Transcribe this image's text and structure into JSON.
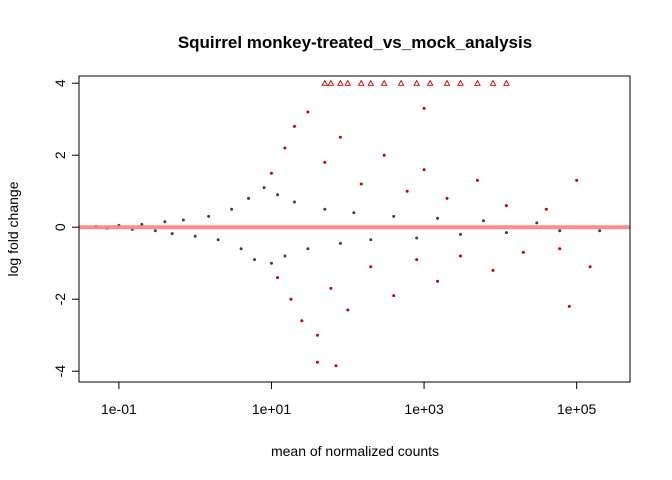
{
  "chart_data": {
    "type": "scatter",
    "title": "Squirrel monkey-treated_vs_mock_analysis",
    "xlabel": "mean of normalized counts",
    "ylabel": "log fold change",
    "x_scale": "log10",
    "xlim": [
      0.03,
      500000
    ],
    "ylim": [
      -4.3,
      4.2
    ],
    "x_ticks": [
      0.1,
      10,
      1000,
      100000
    ],
    "x_tick_labels": [
      "1e-01",
      "1e+01",
      "1e+03",
      "1e+05"
    ],
    "y_ticks": [
      -4,
      -2,
      0,
      2,
      4
    ],
    "y_tick_labels": [
      "-4",
      "-2",
      "0",
      "2",
      "4"
    ],
    "reference_line": {
      "y": 0,
      "color": "#ff8080"
    },
    "grid": false,
    "colors": {
      "not_significant": "#404040",
      "significant": "#cc0000"
    },
    "series": [
      {
        "label": "not_significant",
        "marker": "dot",
        "color": "#404040",
        "points": [
          [
            0.05,
            0.02
          ],
          [
            0.07,
            -0.03
          ],
          [
            0.1,
            0.05
          ],
          [
            0.15,
            -0.06
          ],
          [
            0.2,
            0.08
          ],
          [
            0.3,
            -0.1
          ],
          [
            0.4,
            0.15
          ],
          [
            0.5,
            -0.18
          ],
          [
            0.7,
            0.2
          ],
          [
            1.0,
            -0.25
          ],
          [
            1.5,
            0.3
          ],
          [
            2.0,
            -0.35
          ],
          [
            3.0,
            0.5
          ],
          [
            4.0,
            -0.6
          ],
          [
            5.0,
            0.8
          ],
          [
            6.0,
            -0.9
          ],
          [
            8.0,
            1.1
          ],
          [
            10,
            -1.0
          ],
          [
            12,
            0.9
          ],
          [
            15,
            -0.8
          ],
          [
            20,
            0.7
          ],
          [
            30,
            -0.6
          ],
          [
            50,
            0.5
          ],
          [
            80,
            -0.45
          ],
          [
            120,
            0.4
          ],
          [
            200,
            -0.35
          ],
          [
            400,
            0.3
          ],
          [
            800,
            -0.3
          ],
          [
            1500,
            0.25
          ],
          [
            3000,
            -0.2
          ],
          [
            6000,
            0.18
          ],
          [
            12000,
            -0.15
          ],
          [
            30000,
            0.12
          ],
          [
            60000,
            -0.1
          ],
          [
            200000,
            -0.1
          ]
        ]
      },
      {
        "label": "significant",
        "marker": "dot",
        "color": "#cc0000",
        "points": [
          [
            10,
            1.5
          ],
          [
            12,
            -1.4
          ],
          [
            15,
            2.2
          ],
          [
            18,
            -2.0
          ],
          [
            20,
            2.8
          ],
          [
            25,
            -2.6
          ],
          [
            30,
            3.2
          ],
          [
            40,
            -3.0
          ],
          [
            50,
            1.8
          ],
          [
            60,
            -1.7
          ],
          [
            80,
            2.5
          ],
          [
            100,
            -2.3
          ],
          [
            150,
            1.2
          ],
          [
            200,
            -1.1
          ],
          [
            300,
            2.0
          ],
          [
            400,
            -1.9
          ],
          [
            600,
            1.0
          ],
          [
            800,
            -0.9
          ],
          [
            1000,
            1.6
          ],
          [
            1500,
            -1.5
          ],
          [
            2000,
            0.8
          ],
          [
            3000,
            -0.8
          ],
          [
            5000,
            1.3
          ],
          [
            8000,
            -1.2
          ],
          [
            12000,
            0.6
          ],
          [
            20000,
            -0.7
          ],
          [
            40000,
            0.5
          ],
          [
            60000,
            -0.6
          ],
          [
            100000,
            1.3
          ],
          [
            150000,
            -1.1
          ],
          [
            80000,
            -2.2
          ],
          [
            40,
            -3.75
          ],
          [
            70,
            -3.85
          ],
          [
            1000,
            3.3
          ]
        ]
      },
      {
        "label": "significant_out_of_range",
        "marker": "open-triangle",
        "color": "#cc0000",
        "points": [
          [
            50,
            4.0
          ],
          [
            60,
            4.0
          ],
          [
            80,
            4.0
          ],
          [
            100,
            4.0
          ],
          [
            150,
            4.0
          ],
          [
            200,
            4.0
          ],
          [
            300,
            4.0
          ],
          [
            500,
            4.0
          ],
          [
            800,
            4.0
          ],
          [
            1200,
            4.0
          ],
          [
            2000,
            4.0
          ],
          [
            3000,
            4.0
          ],
          [
            5000,
            4.0
          ],
          [
            8000,
            4.0
          ],
          [
            12000,
            4.0
          ]
        ]
      }
    ]
  }
}
